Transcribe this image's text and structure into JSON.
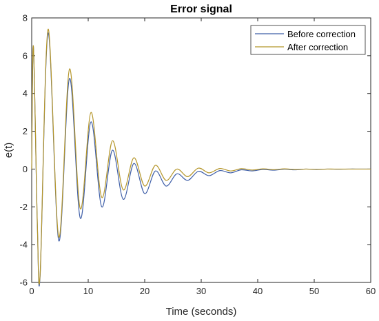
{
  "chart_data": {
    "type": "line",
    "title": "Error signal",
    "xlabel": "Time (seconds)",
    "ylabel": "e(t)",
    "xlim": [
      0,
      60
    ],
    "ylim": [
      -6,
      8
    ],
    "xticks": [
      0,
      10,
      20,
      30,
      40,
      50,
      60
    ],
    "yticks": [
      -6,
      -4,
      -2,
      0,
      2,
      4,
      6,
      8
    ],
    "grid": false,
    "legend_position": "top-right",
    "series": [
      {
        "name": "Before correction",
        "color": "#3f5fa8",
        "x": [
          0,
          0.3,
          1.0,
          1.5,
          2.9,
          4.8,
          6.7,
          8.6,
          10.5,
          12.4,
          14.3,
          16.2,
          18.1,
          20.0,
          21.9,
          23.8,
          25.7,
          27.6,
          29.5,
          31.4,
          33.3,
          35.2,
          37.1,
          39.0,
          40.9,
          42.8,
          44.7,
          46.6,
          48.5,
          50.4,
          52.3,
          54.2,
          56.1,
          58.0,
          60.0
        ],
        "y": [
          0,
          6.5,
          -3.0,
          -5.6,
          7.2,
          -3.8,
          4.8,
          -2.6,
          2.5,
          -2.0,
          1.0,
          -1.6,
          0.3,
          -1.3,
          -0.1,
          -0.9,
          -0.25,
          -0.6,
          -0.12,
          -0.35,
          -0.08,
          -0.2,
          -0.04,
          -0.1,
          -0.02,
          -0.06,
          -0.01,
          -0.04,
          0.0,
          -0.02,
          0.0,
          -0.01,
          0.0,
          0.0,
          0.0
        ]
      },
      {
        "name": "After correction",
        "color": "#b5962a",
        "x": [
          0,
          0.3,
          1.0,
          1.5,
          2.9,
          4.8,
          6.7,
          8.6,
          10.5,
          12.4,
          14.3,
          16.2,
          18.1,
          20.0,
          21.9,
          23.8,
          25.7,
          27.6,
          29.5,
          31.4,
          33.3,
          35.2,
          37.1,
          39.0,
          40.9,
          42.8,
          44.7,
          46.6,
          48.5,
          50.4,
          52.3,
          54.2,
          56.1,
          58.0,
          60.0
        ],
        "y": [
          0,
          6.5,
          -2.9,
          -5.5,
          7.4,
          -3.6,
          5.3,
          -2.1,
          3.0,
          -1.5,
          1.5,
          -1.1,
          0.6,
          -0.9,
          0.2,
          -0.6,
          0.0,
          -0.4,
          0.05,
          -0.2,
          0.03,
          -0.1,
          0.02,
          -0.05,
          0.01,
          -0.03,
          0.01,
          -0.02,
          0.0,
          -0.01,
          0.0,
          0.0,
          0.0,
          0.0,
          0.0
        ]
      }
    ]
  }
}
